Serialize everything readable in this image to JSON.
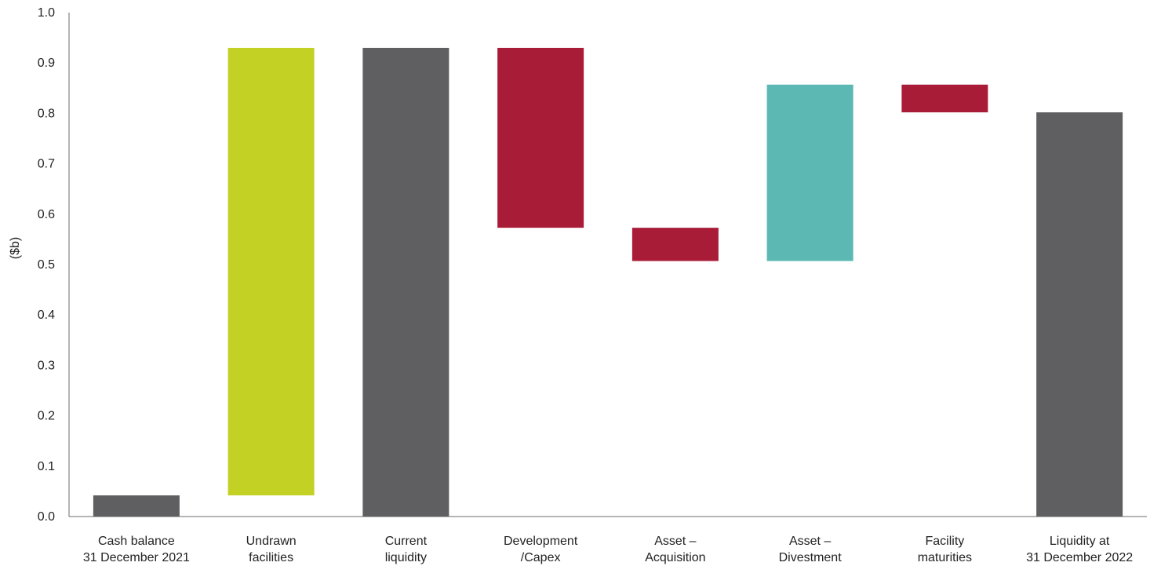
{
  "chart_data": {
    "type": "bar",
    "subtype": "waterfall",
    "title": "",
    "xlabel": "",
    "ylabel": "($b)",
    "ylim": [
      0,
      1.0
    ],
    "yticks": [
      "0.0",
      "0.1",
      "0.2",
      "0.3",
      "0.4",
      "0.5",
      "0.6",
      "0.7",
      "0.8",
      "0.9",
      "1.0"
    ],
    "grid": false,
    "legend": "none",
    "colors": {
      "total": "#5f5f61",
      "increase_facilities": "#c3d024",
      "decrease": "#a81c38",
      "increase_divestment": "#5cb8b3",
      "axis": "#6b6b6b"
    },
    "bars": [
      {
        "label_lines": [
          "Cash balance",
          "31 December 2021"
        ],
        "kind": "total",
        "start": 0.0,
        "end": 0.042,
        "color_key": "total"
      },
      {
        "label_lines": [
          "Undrawn",
          "facilities"
        ],
        "kind": "increase",
        "start": 0.042,
        "end": 0.93,
        "color_key": "increase_facilities"
      },
      {
        "label_lines": [
          "Current",
          "liquidity"
        ],
        "kind": "total",
        "start": 0.0,
        "end": 0.93,
        "color_key": "total"
      },
      {
        "label_lines": [
          "Development",
          "/Capex"
        ],
        "kind": "decrease",
        "start": 0.93,
        "end": 0.573,
        "color_key": "decrease"
      },
      {
        "label_lines": [
          "Asset –",
          "Acquisition"
        ],
        "kind": "decrease",
        "start": 0.573,
        "end": 0.507,
        "color_key": "decrease"
      },
      {
        "label_lines": [
          "Asset –",
          "Divestment"
        ],
        "kind": "increase",
        "start": 0.507,
        "end": 0.857,
        "color_key": "increase_divestment"
      },
      {
        "label_lines": [
          "Facility",
          "maturities"
        ],
        "kind": "decrease",
        "start": 0.857,
        "end": 0.802,
        "color_key": "decrease"
      },
      {
        "label_lines": [
          "Liquidity at",
          "31 December 2022"
        ],
        "kind": "total",
        "start": 0.0,
        "end": 0.802,
        "color_key": "total"
      }
    ]
  }
}
